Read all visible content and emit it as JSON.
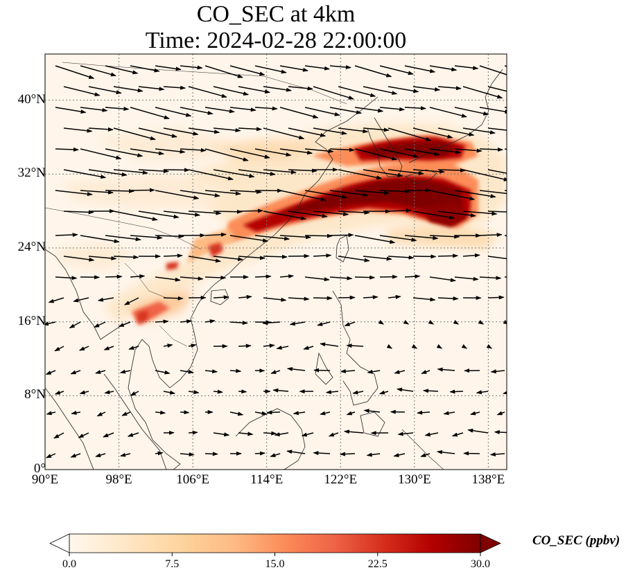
{
  "title": {
    "line1": "CO_SEC at 4km",
    "line2": "Time: 2024-02-28 22:00:00"
  },
  "map": {
    "extent": {
      "lon": [
        90,
        140
      ],
      "lat": [
        0,
        45
      ]
    },
    "lat_ticks": [
      "0°",
      "8°N",
      "16°N",
      "24°N",
      "32°N",
      "40°N"
    ],
    "lat_values": [
      0,
      8,
      16,
      24,
      32,
      40
    ],
    "lon_ticks": [
      "90°E",
      "98°E",
      "106°E",
      "114°E",
      "122°E",
      "130°E",
      "138°E"
    ],
    "lon_values": [
      90,
      98,
      106,
      114,
      122,
      130,
      138
    ],
    "gridlines": true
  },
  "colorbar": {
    "label": "CO_SEC (ppbv)",
    "ticks": [
      "0.0",
      "7.5",
      "15.0",
      "22.5",
      "30.0"
    ],
    "tick_values": [
      0,
      7.5,
      15,
      22.5,
      30
    ],
    "range": [
      0,
      30
    ],
    "extend": "both",
    "colors": [
      "#fff7ec",
      "#fee8c8",
      "#fdd49e",
      "#fdbb84",
      "#fc8d59",
      "#ef6548",
      "#d7301f",
      "#b30000",
      "#7f0000"
    ]
  },
  "colors": {
    "background": "#fff5ea",
    "coast": "#222222",
    "arrow": "#000000"
  }
}
